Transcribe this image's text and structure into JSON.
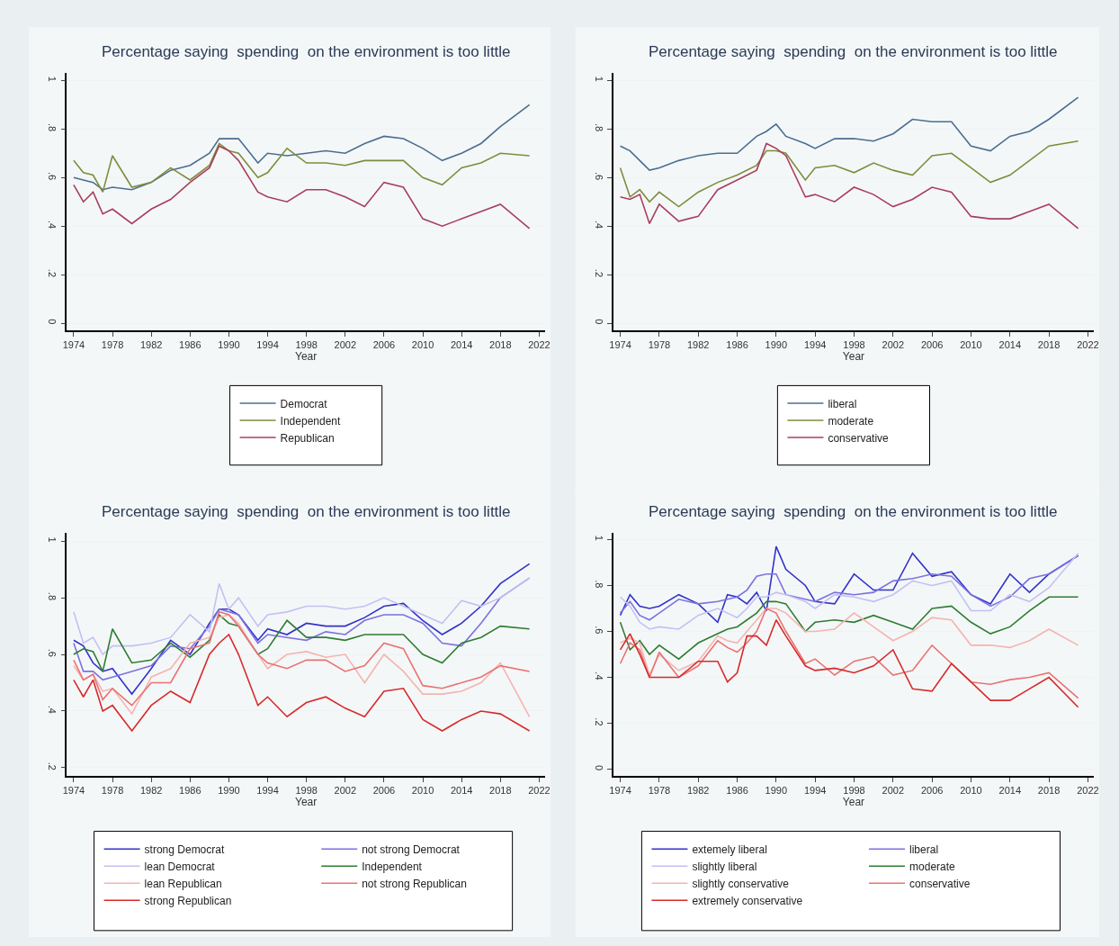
{
  "chart_data": [
    {
      "type": "line",
      "title": "Percentage saying  spending  on the environment is too little",
      "xlabel": "Year",
      "xlim": [
        1973.3,
        2022.6
      ],
      "xticks": [
        1974,
        1978,
        1982,
        1986,
        1990,
        1994,
        1998,
        2002,
        2006,
        2010,
        2014,
        2018,
        2022
      ],
      "ylim": [
        -0.03,
        1.03
      ],
      "yticks": [
        0,
        {
          "value": 0.2,
          "label": ".2"
        },
        {
          "value": 0.4,
          "label": ".4"
        },
        {
          "value": 0.6,
          "label": ".6"
        },
        {
          "value": 0.8,
          "label": ".8"
        },
        1
      ],
      "grid": "y",
      "legend": "bottom",
      "x": [
        1974,
        1975,
        1976,
        1977,
        1978,
        1980,
        1982,
        1984,
        1986,
        1988,
        1989,
        1990,
        1991,
        1993,
        1994,
        1996,
        1998,
        2000,
        2002,
        2004,
        2006,
        2008,
        2010,
        2012,
        2014,
        2016,
        2018,
        2021
      ],
      "series": [
        {
          "name": "Democrat",
          "color": "#4a6e90",
          "values": [
            0.6,
            0.59,
            0.58,
            0.55,
            0.56,
            0.55,
            0.58,
            0.63,
            0.65,
            0.7,
            0.76,
            0.76,
            0.76,
            0.66,
            0.7,
            0.69,
            0.7,
            0.71,
            0.7,
            0.74,
            0.77,
            0.76,
            0.72,
            0.67,
            0.7,
            0.74,
            0.81,
            0.9
          ]
        },
        {
          "name": "Independent",
          "color": "#7f8c3c",
          "values": [
            0.67,
            0.62,
            0.61,
            0.54,
            0.69,
            0.56,
            0.58,
            0.64,
            0.59,
            0.65,
            0.74,
            0.71,
            0.7,
            0.6,
            0.62,
            0.72,
            0.66,
            0.66,
            0.65,
            0.67,
            0.67,
            0.67,
            0.6,
            0.57,
            0.64,
            0.66,
            0.7,
            0.69
          ]
        },
        {
          "name": "Republican",
          "color": "#a83f5c",
          "values": [
            0.57,
            0.5,
            0.54,
            0.45,
            0.47,
            0.41,
            0.47,
            0.51,
            0.58,
            0.64,
            0.73,
            0.71,
            0.67,
            0.54,
            0.52,
            0.5,
            0.55,
            0.55,
            0.52,
            0.48,
            0.58,
            0.56,
            0.43,
            0.4,
            0.43,
            0.46,
            0.49,
            0.39
          ]
        }
      ]
    },
    {
      "type": "line",
      "title": "Percentage saying  spending  on the environment is too little",
      "xlabel": "Year",
      "xlim": [
        1973.3,
        2022.6
      ],
      "xticks": [
        1974,
        1978,
        1982,
        1986,
        1990,
        1994,
        1998,
        2002,
        2006,
        2010,
        2014,
        2018,
        2022
      ],
      "ylim": [
        -0.03,
        1.03
      ],
      "yticks": [
        0,
        {
          "value": 0.2,
          "label": ".2"
        },
        {
          "value": 0.4,
          "label": ".4"
        },
        {
          "value": 0.6,
          "label": ".6"
        },
        {
          "value": 0.8,
          "label": ".8"
        },
        1
      ],
      "grid": "y",
      "legend": "bottom",
      "x": [
        1974,
        1975,
        1976,
        1977,
        1978,
        1980,
        1982,
        1984,
        1986,
        1988,
        1989,
        1990,
        1991,
        1993,
        1994,
        1996,
        1998,
        2000,
        2002,
        2004,
        2006,
        2008,
        2010,
        2012,
        2014,
        2016,
        2018,
        2021
      ],
      "series": [
        {
          "name": "liberal",
          "color": "#4a6e90",
          "values": [
            0.73,
            0.71,
            0.67,
            0.63,
            0.64,
            0.67,
            0.69,
            0.7,
            0.7,
            0.77,
            0.79,
            0.82,
            0.77,
            0.74,
            0.72,
            0.76,
            0.76,
            0.75,
            0.78,
            0.84,
            0.83,
            0.83,
            0.73,
            0.71,
            0.77,
            0.79,
            0.84,
            0.93
          ]
        },
        {
          "name": "moderate",
          "color": "#7f8c3c",
          "values": [
            0.64,
            0.52,
            0.55,
            0.5,
            0.54,
            0.48,
            0.54,
            0.58,
            0.61,
            0.65,
            0.71,
            0.71,
            0.7,
            0.59,
            0.64,
            0.65,
            0.62,
            0.66,
            0.63,
            0.61,
            0.69,
            0.7,
            0.64,
            0.58,
            0.61,
            0.67,
            0.73,
            0.75
          ]
        },
        {
          "name": "conservative",
          "color": "#a83f5c",
          "values": [
            0.52,
            0.51,
            0.53,
            0.41,
            0.49,
            0.42,
            0.44,
            0.55,
            0.59,
            0.63,
            0.74,
            0.72,
            0.69,
            0.52,
            0.53,
            0.5,
            0.56,
            0.53,
            0.48,
            0.51,
            0.56,
            0.54,
            0.44,
            0.43,
            0.43,
            0.46,
            0.49,
            0.39
          ]
        }
      ]
    },
    {
      "type": "line",
      "title": "Percentage saying  spending  on the environment is too little",
      "xlabel": "Year",
      "xlim": [
        1973.3,
        2022.6
      ],
      "xticks": [
        1974,
        1978,
        1982,
        1986,
        1990,
        1994,
        1998,
        2002,
        2006,
        2010,
        2014,
        2018,
        2022
      ],
      "ylim": [
        0.17,
        1.03
      ],
      "yticks": [
        {
          "value": 0.2,
          "label": ".2"
        },
        {
          "value": 0.4,
          "label": ".4"
        },
        {
          "value": 0.6,
          "label": ".6"
        },
        {
          "value": 0.8,
          "label": ".8"
        },
        1
      ],
      "grid": "y",
      "legend": "bottom",
      "x": [
        1974,
        1975,
        1976,
        1977,
        1978,
        1980,
        1982,
        1984,
        1986,
        1988,
        1989,
        1990,
        1991,
        1993,
        1994,
        1996,
        1998,
        2000,
        2002,
        2004,
        2006,
        2008,
        2010,
        2012,
        2014,
        2016,
        2018,
        2021
      ],
      "series": [
        {
          "name": "strong Democrat",
          "color": "#3333c8",
          "values": [
            0.65,
            0.63,
            0.57,
            0.54,
            0.55,
            0.46,
            0.55,
            0.65,
            0.6,
            0.71,
            0.76,
            0.76,
            0.74,
            0.65,
            0.69,
            0.67,
            0.71,
            0.7,
            0.7,
            0.73,
            0.77,
            0.78,
            0.72,
            0.67,
            0.71,
            0.77,
            0.85,
            0.92
          ]
        },
        {
          "name": "not strong Democrat",
          "color": "#7b72e0",
          "values": [
            0.64,
            0.54,
            0.54,
            0.51,
            0.52,
            0.54,
            0.56,
            0.63,
            0.62,
            0.7,
            0.76,
            0.75,
            0.74,
            0.64,
            0.67,
            0.66,
            0.65,
            0.68,
            0.67,
            0.72,
            0.74,
            0.74,
            0.71,
            0.64,
            0.63,
            0.71,
            0.8,
            0.87
          ]
        },
        {
          "name": "lean Democrat",
          "color": "#c4c0f2",
          "values": [
            0.75,
            0.64,
            0.66,
            0.6,
            0.63,
            0.63,
            0.64,
            0.66,
            0.74,
            0.68,
            0.85,
            0.76,
            0.8,
            0.7,
            0.74,
            0.75,
            0.77,
            0.77,
            0.76,
            0.77,
            0.8,
            0.77,
            0.74,
            0.71,
            0.79,
            0.77,
            0.8,
            0.87
          ]
        },
        {
          "name": "Independent",
          "color": "#2e7d32",
          "values": [
            0.6,
            0.62,
            0.61,
            0.54,
            0.69,
            0.57,
            0.58,
            0.64,
            0.59,
            0.65,
            0.74,
            0.71,
            0.7,
            0.6,
            0.62,
            0.72,
            0.66,
            0.66,
            0.65,
            0.67,
            0.67,
            0.67,
            0.6,
            0.57,
            0.64,
            0.66,
            0.7,
            0.69
          ]
        },
        {
          "name": "lean Republican",
          "color": "#f5b4b0",
          "values": [
            0.56,
            0.51,
            0.53,
            0.47,
            0.48,
            0.39,
            0.52,
            0.55,
            0.64,
            0.66,
            0.73,
            0.74,
            0.71,
            0.6,
            0.55,
            0.6,
            0.61,
            0.59,
            0.6,
            0.5,
            0.6,
            0.54,
            0.46,
            0.46,
            0.47,
            0.5,
            0.57,
            0.38
          ]
        },
        {
          "name": "not strong Republican",
          "color": "#ea7272",
          "values": [
            0.58,
            0.51,
            0.53,
            0.44,
            0.48,
            0.42,
            0.5,
            0.5,
            0.62,
            0.64,
            0.75,
            0.74,
            0.7,
            0.6,
            0.57,
            0.55,
            0.58,
            0.58,
            0.54,
            0.56,
            0.64,
            0.62,
            0.49,
            0.48,
            0.5,
            0.52,
            0.56,
            0.54
          ]
        },
        {
          "name": "strong Republican",
          "color": "#d82a2a",
          "values": [
            0.51,
            0.45,
            0.51,
            0.4,
            0.42,
            0.33,
            0.42,
            0.47,
            0.43,
            0.6,
            0.64,
            0.67,
            0.6,
            0.42,
            0.45,
            0.38,
            0.43,
            0.45,
            0.41,
            0.38,
            0.47,
            0.48,
            0.37,
            0.33,
            0.37,
            0.4,
            0.39,
            0.33
          ]
        }
      ]
    },
    {
      "type": "line",
      "title": "Percentage saying  spending  on the environment is too little",
      "xlabel": "Year",
      "xlim": [
        1973.3,
        2022.6
      ],
      "xticks": [
        1974,
        1978,
        1982,
        1986,
        1990,
        1994,
        1998,
        2002,
        2006,
        2010,
        2014,
        2018,
        2022
      ],
      "ylim": [
        -0.03,
        1.03
      ],
      "yticks": [
        0,
        {
          "value": 0.2,
          "label": ".2"
        },
        {
          "value": 0.4,
          "label": ".4"
        },
        {
          "value": 0.6,
          "label": ".6"
        },
        {
          "value": 0.8,
          "label": ".8"
        },
        1
      ],
      "grid": "y",
      "legend": "bottom",
      "x": [
        1974,
        1975,
        1976,
        1977,
        1978,
        1980,
        1982,
        1984,
        1985,
        1986,
        1987,
        1988,
        1989,
        1990,
        1991,
        1993,
        1994,
        1996,
        1998,
        2000,
        2002,
        2004,
        2006,
        2008,
        2010,
        2012,
        2014,
        2016,
        2018,
        2021
      ],
      "series": [
        {
          "name": "extemely liberal",
          "color": "#3333c8",
          "values": [
            0.67,
            0.76,
            0.71,
            0.7,
            0.71,
            0.76,
            0.72,
            0.64,
            0.76,
            0.75,
            0.72,
            0.77,
            0.69,
            0.97,
            0.87,
            0.8,
            0.73,
            0.72,
            0.85,
            0.78,
            0.78,
            0.94,
            0.84,
            0.86,
            0.76,
            0.72,
            0.85,
            0.77,
            0.85,
            0.93
          ]
        },
        {
          "name": "liberal",
          "color": "#7b72e0",
          "values": [
            0.68,
            0.73,
            0.67,
            0.65,
            0.68,
            0.74,
            0.72,
            0.73,
            0.74,
            0.75,
            0.78,
            0.84,
            0.85,
            0.85,
            0.76,
            0.74,
            0.73,
            0.77,
            0.76,
            0.77,
            0.82,
            0.83,
            0.85,
            0.84,
            0.76,
            0.71,
            0.75,
            0.83,
            0.85,
            0.93
          ]
        },
        {
          "name": "slightly liberal",
          "color": "#c4c0f2",
          "values": [
            0.75,
            0.71,
            0.64,
            0.61,
            0.62,
            0.61,
            0.67,
            0.7,
            0.68,
            0.66,
            0.7,
            0.75,
            0.75,
            0.77,
            0.76,
            0.73,
            0.7,
            0.76,
            0.75,
            0.73,
            0.76,
            0.82,
            0.8,
            0.82,
            0.69,
            0.69,
            0.76,
            0.73,
            0.79,
            0.94
          ]
        },
        {
          "name": "moderate",
          "color": "#2e7d32",
          "values": [
            0.64,
            0.52,
            0.56,
            0.5,
            0.54,
            0.48,
            0.55,
            0.59,
            0.61,
            0.62,
            0.65,
            0.68,
            0.73,
            0.73,
            0.72,
            0.6,
            0.64,
            0.65,
            0.64,
            0.67,
            0.64,
            0.61,
            0.7,
            0.71,
            0.64,
            0.59,
            0.62,
            0.69,
            0.75,
            0.75
          ]
        },
        {
          "name": "slightly conservative",
          "color": "#f5b4b0",
          "values": [
            0.55,
            0.57,
            0.55,
            0.41,
            0.5,
            0.43,
            0.47,
            0.58,
            0.56,
            0.55,
            0.6,
            0.65,
            0.7,
            0.7,
            0.68,
            0.6,
            0.6,
            0.61,
            0.68,
            0.62,
            0.56,
            0.6,
            0.66,
            0.65,
            0.54,
            0.54,
            0.53,
            0.56,
            0.61,
            0.54
          ]
        },
        {
          "name": "conservative",
          "color": "#ea7272",
          "values": [
            0.46,
            0.55,
            0.52,
            0.4,
            0.51,
            0.4,
            0.45,
            0.56,
            0.53,
            0.51,
            0.55,
            0.6,
            0.7,
            0.68,
            0.6,
            0.46,
            0.48,
            0.41,
            0.47,
            0.49,
            0.41,
            0.43,
            0.54,
            0.46,
            0.38,
            0.37,
            0.39,
            0.4,
            0.42,
            0.31
          ]
        },
        {
          "name": "extremely conservative",
          "color": "#d82a2a",
          "values": [
            0.52,
            0.59,
            0.5,
            0.4,
            0.4,
            0.4,
            0.47,
            0.47,
            0.38,
            0.42,
            0.58,
            0.58,
            0.54,
            0.65,
            0.58,
            0.45,
            0.43,
            0.44,
            0.42,
            0.45,
            0.52,
            0.35,
            0.34,
            0.46,
            0.38,
            0.3,
            0.3,
            0.35,
            0.4,
            0.27
          ]
        }
      ]
    }
  ]
}
